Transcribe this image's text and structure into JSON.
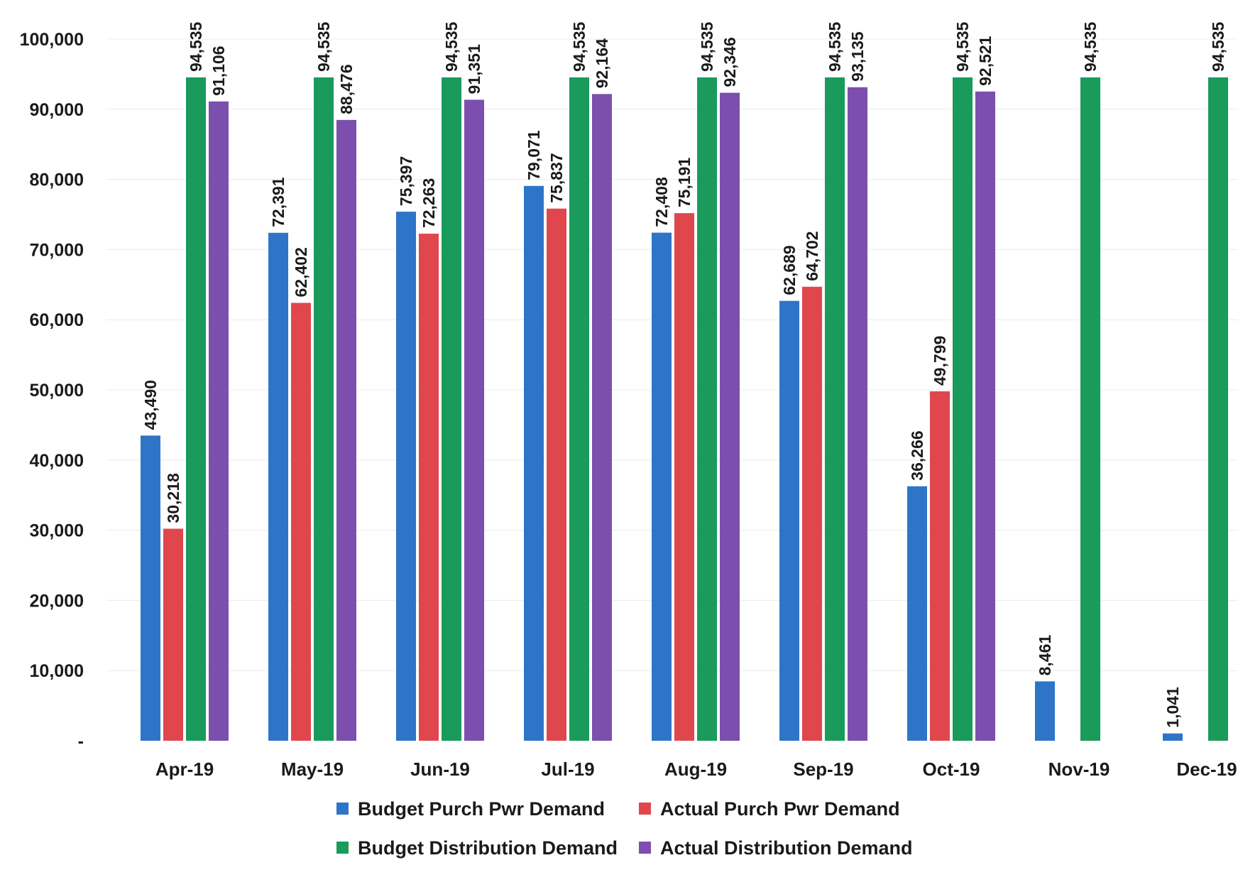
{
  "chart_data": {
    "type": "bar",
    "title": "",
    "xlabel": "",
    "ylabel": "",
    "ylim": [
      0,
      100000
    ],
    "yticks": [
      {
        "value": 0,
        "label": "-"
      },
      {
        "value": 10000,
        "label": "10,000"
      },
      {
        "value": 20000,
        "label": "20,000"
      },
      {
        "value": 30000,
        "label": "30,000"
      },
      {
        "value": 40000,
        "label": "40,000"
      },
      {
        "value": 50000,
        "label": "50,000"
      },
      {
        "value": 60000,
        "label": "60,000"
      },
      {
        "value": 70000,
        "label": "70,000"
      },
      {
        "value": 80000,
        "label": "80,000"
      },
      {
        "value": 90000,
        "label": "90,000"
      },
      {
        "value": 100000,
        "label": "100,000"
      }
    ],
    "grid": true,
    "legend_position": "bottom",
    "categories": [
      "Apr-19",
      "May-19",
      "Jun-19",
      "Jul-19",
      "Aug-19",
      "Sep-19",
      "Oct-19",
      "Nov-19",
      "Dec-19"
    ],
    "series": [
      {
        "name": "Budget Purch Pwr Demand",
        "color": "#2e75c7",
        "values": [
          43490,
          72391,
          75397,
          79071,
          72408,
          62689,
          36266,
          8461,
          1041
        ],
        "labels": [
          "43,490",
          "72,391",
          "75,397",
          "79,071",
          "72,408",
          "62,689",
          "36,266",
          "8,461",
          "1,041"
        ]
      },
      {
        "name": "Actual Purch Pwr Demand",
        "color": "#e0474c",
        "values": [
          30218,
          62402,
          72263,
          75837,
          75191,
          64702,
          49799,
          null,
          null
        ],
        "labels": [
          "30,218",
          "62,402",
          "72,263",
          "75,837",
          "75,191",
          "64,702",
          "49,799",
          null,
          null
        ]
      },
      {
        "name": "Budget Distribution Demand",
        "color": "#1a9a5b",
        "values": [
          94535,
          94535,
          94535,
          94535,
          94535,
          94535,
          94535,
          94535,
          94535
        ],
        "labels": [
          "94,535",
          "94,535",
          "94,535",
          "94,535",
          "94,535",
          "94,535",
          "94,535",
          "94,535",
          "94,535"
        ]
      },
      {
        "name": "Actual Distribution Demand",
        "color": "#7c4fae",
        "values": [
          91106,
          88476,
          91351,
          92164,
          92346,
          93135,
          92521,
          null,
          null
        ],
        "labels": [
          "91,106",
          "88,476",
          "91,351",
          "92,164",
          "92,346",
          "93,135",
          "92,521",
          null,
          null
        ]
      }
    ]
  }
}
